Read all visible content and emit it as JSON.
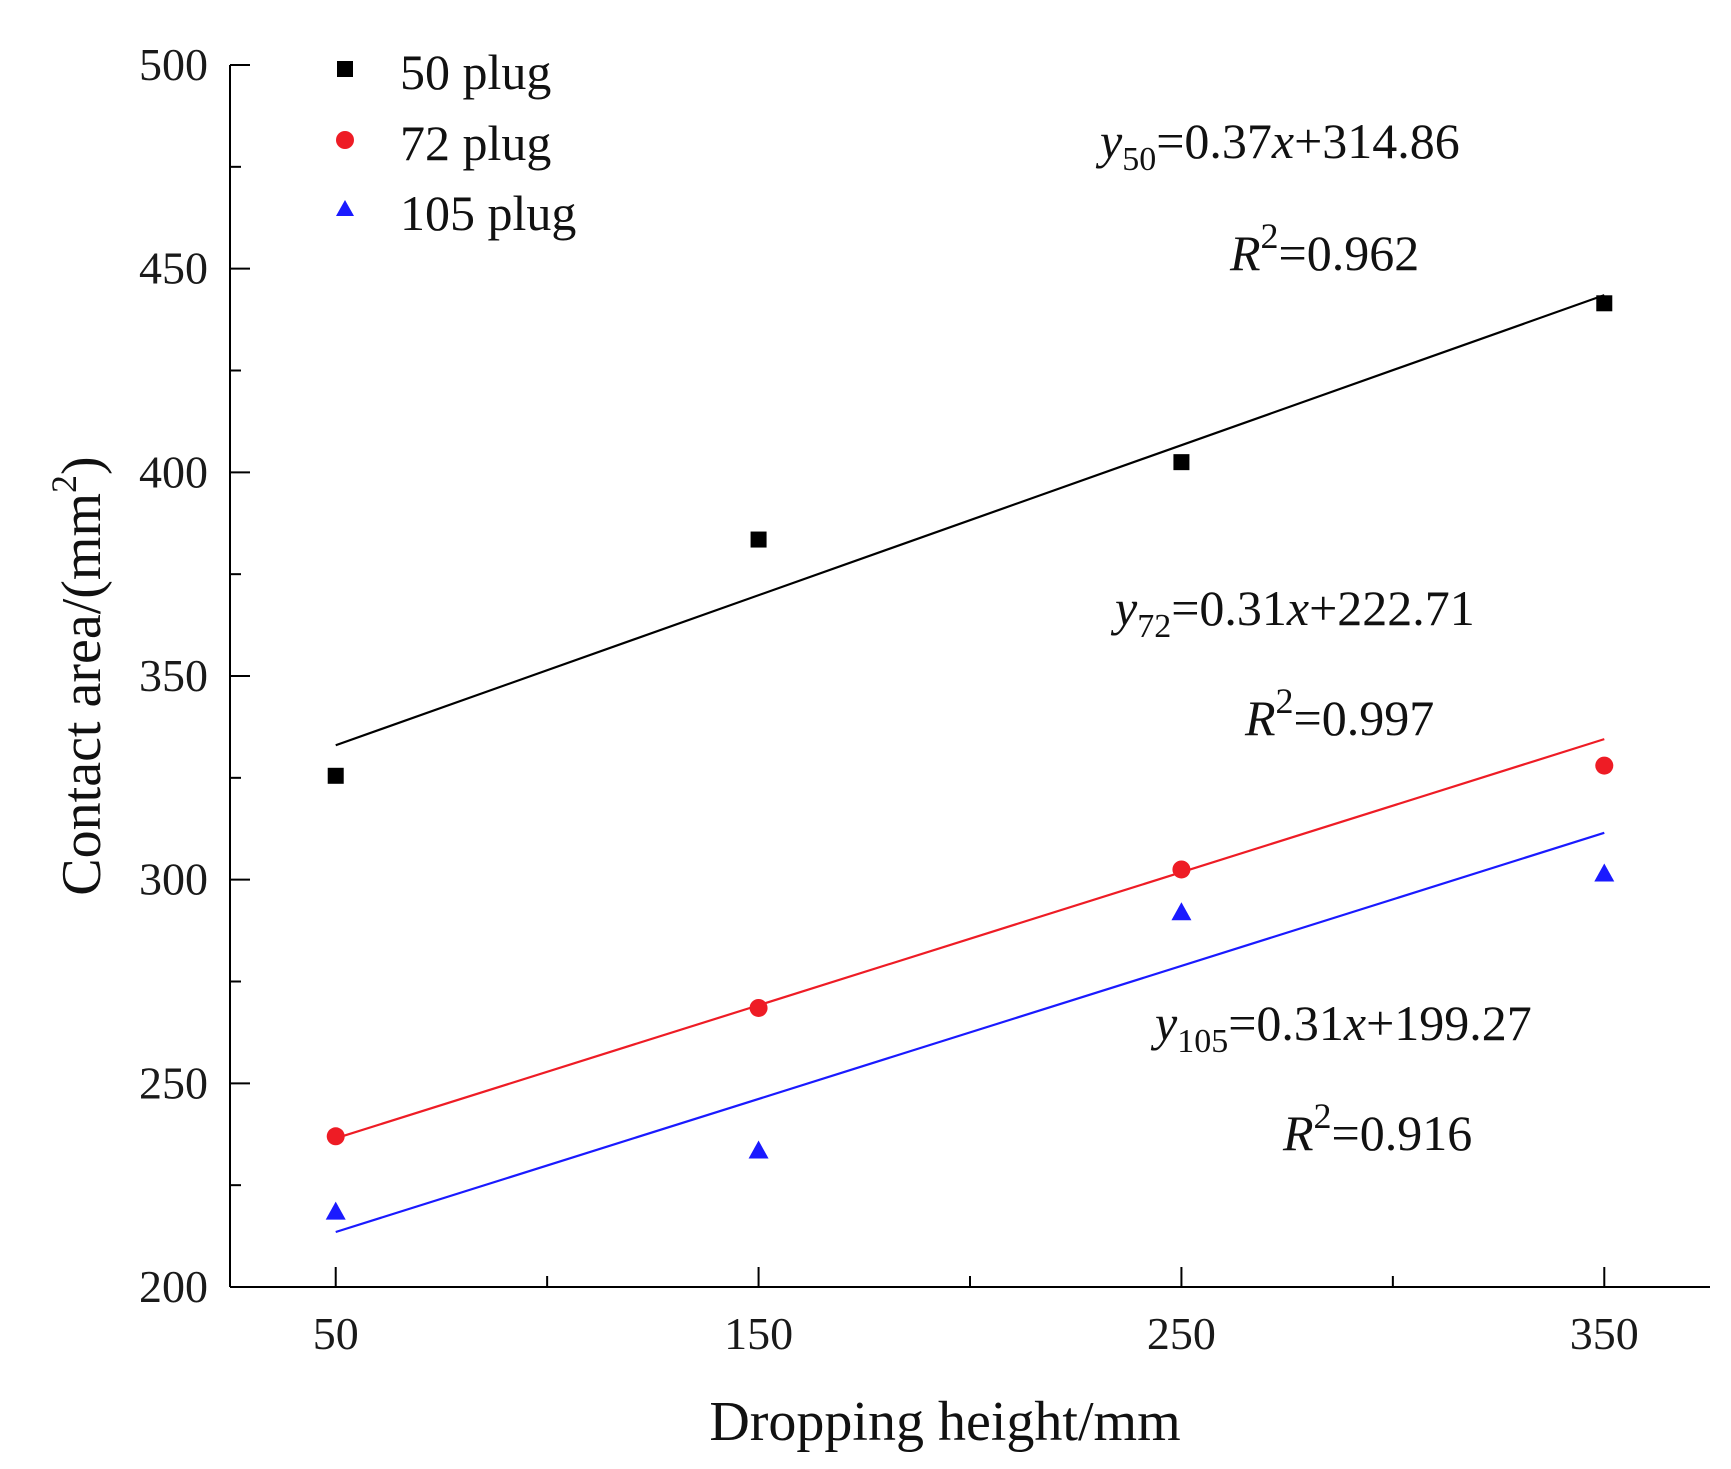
{
  "chart_data": {
    "type": "scatter",
    "xlabel": "Dropping height/mm",
    "ylabel": "Contact area/(mm",
    "ylabel_sup": "2",
    "ylabel_tail": ")",
    "x": [
      50,
      150,
      250,
      350
    ],
    "x_ticks": [
      "50",
      "150",
      "250",
      "350"
    ],
    "y_ticks": [
      "200",
      "250",
      "300",
      "350",
      "400",
      "450",
      "500"
    ],
    "xlim": [
      25,
      375
    ],
    "ylim": [
      200,
      500
    ],
    "series": [
      {
        "name": "50 plug",
        "marker": "square",
        "color": "#000000",
        "values": [
          325.5,
          383.5,
          402.5,
          441.5
        ],
        "fit": {
          "slope": 0.37,
          "intercept": 314.86
        },
        "fit_line": [
          333.0,
          443.5
        ],
        "eq_lhs": "y",
        "eq_sub": "50",
        "eq_rhs_a": "=0.37",
        "eq_x": "x",
        "eq_rhs_b": "+314.86",
        "r2_lhs": "R",
        "r2_sup": "2",
        "r2_rhs": "=0.962"
      },
      {
        "name": "72 plug",
        "marker": "circle",
        "color": "#ee1c25",
        "values": [
          237.0,
          268.5,
          302.5,
          328.0
        ],
        "fit": {
          "slope": 0.31,
          "intercept": 222.71
        },
        "fit_line": [
          236.5,
          334.5
        ],
        "eq_lhs": "y",
        "eq_sub": "72",
        "eq_rhs_a": "=0.31",
        "eq_x": "x",
        "eq_rhs_b": "+222.71",
        "r2_lhs": "R",
        "r2_sup": "2",
        "r2_rhs": "=0.997"
      },
      {
        "name": "105 plug",
        "marker": "triangle",
        "color": "#1a1aff",
        "values": [
          218.5,
          233.5,
          292.0,
          301.5
        ],
        "fit": {
          "slope": 0.31,
          "intercept": 199.27
        },
        "fit_line": [
          213.5,
          311.5
        ],
        "eq_lhs": "y",
        "eq_sub": "105",
        "eq_rhs_a": "=0.31",
        "eq_x": "x",
        "eq_rhs_b": "+199.27",
        "r2_lhs": "R",
        "r2_sup": "2",
        "r2_rhs": "=0.916"
      }
    ],
    "legend_position": "top-left"
  }
}
